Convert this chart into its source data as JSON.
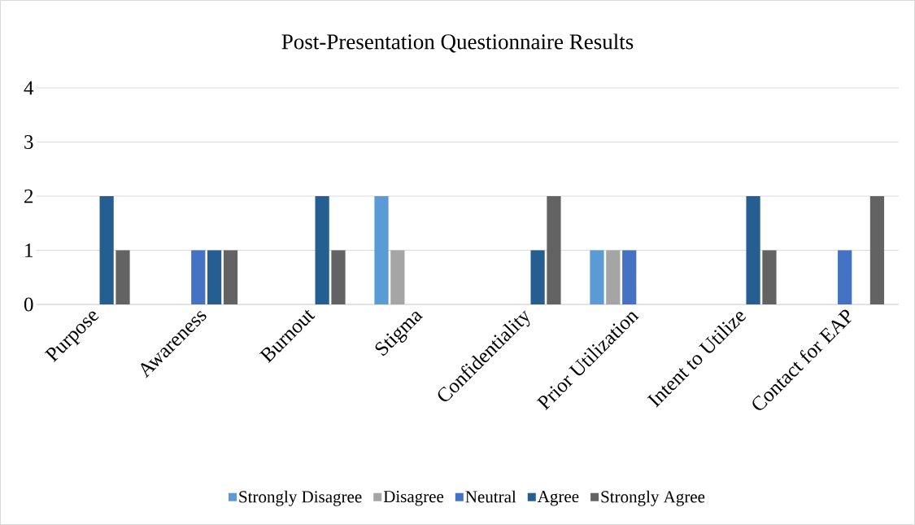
{
  "chart_data": {
    "type": "bar",
    "title": "Post-Presentation Questionnaire Results",
    "categories": [
      "Purpose",
      "Awareness",
      "Burnout",
      "Stigma",
      "Confidentiality",
      "Prior Utilization",
      "Intent to Utilize",
      "Contact for EAP"
    ],
    "series": [
      {
        "name": "Strongly Disagree",
        "color": "#5b9bd5",
        "values": [
          0,
          0,
          0,
          2,
          0,
          1,
          0,
          0
        ]
      },
      {
        "name": "Disagree",
        "color": "#a5a5a5",
        "values": [
          0,
          0,
          0,
          1,
          0,
          1,
          0,
          0
        ]
      },
      {
        "name": "Neutral",
        "color": "#4472c4",
        "values": [
          0,
          1,
          0,
          0,
          0,
          1,
          0,
          1
        ]
      },
      {
        "name": "Agree",
        "color": "#255e91",
        "values": [
          2,
          1,
          2,
          0,
          1,
          0,
          2,
          0
        ]
      },
      {
        "name": "Strongly Agree",
        "color": "#636363",
        "values": [
          1,
          1,
          1,
          0,
          2,
          0,
          1,
          2
        ]
      }
    ],
    "ylim": [
      0,
      4
    ],
    "yticks": [
      0,
      1,
      2,
      3,
      4
    ],
    "grid": "y",
    "legend": "bottom"
  }
}
